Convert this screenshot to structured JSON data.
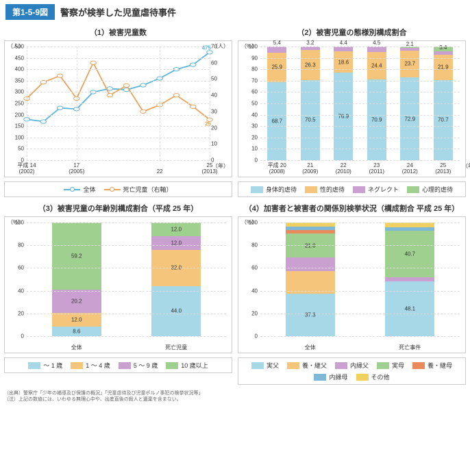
{
  "header": {
    "badge": "第1-5-9図",
    "title": "警察が検挙した児童虐待事件"
  },
  "colors": {
    "line_total": "#5bb5d9",
    "line_death": "#e8a35a",
    "physical": "#a6d8e8",
    "sexual": "#f4c57a",
    "neglect": "#c9a0d0",
    "psych": "#a0d090",
    "age0_1": "#a6d8e8",
    "age1_4": "#f4c57a",
    "age5_9": "#c9a0d0",
    "age10p": "#a0d090",
    "father": "#a6d8e8",
    "stepfather": "#f4c57a",
    "cohabfather": "#c9a0d0",
    "mother": "#a0d090",
    "stepmother": "#e88a5a",
    "cohabmother": "#7db8d8",
    "other": "#f0d060",
    "grid": "#dddddd"
  },
  "chart1": {
    "title": "（1）被害児童数",
    "unit_left": "（人）",
    "unit_right": "（人）",
    "unit_x": "（年）",
    "ymax_l": 500,
    "ystep_l": 50,
    "ymax_r": 70,
    "ystep_r": 10,
    "years": [
      "平成 14\n(2002)",
      "",
      "",
      "17\n(2005)",
      "",
      "",
      "",
      "",
      "22\n",
      "",
      "",
      "25\n(2013)"
    ],
    "total": [
      180,
      170,
      230,
      225,
      300,
      315,
      310,
      330,
      360,
      400,
      420,
      475
    ],
    "death": [
      38,
      48,
      52,
      38,
      60,
      40,
      46,
      30,
      34,
      40,
      33,
      25
    ],
    "labels": {
      "total_last": "475",
      "death_last": "25"
    },
    "legend": [
      "全体",
      "死亡児童（右軸）"
    ]
  },
  "chart2": {
    "title": "（2）被害児童の態様別構成割合",
    "unit_left": "（%）",
    "unit_x": "（年）",
    "ymax": 100,
    "ystep": 10,
    "years": [
      "平成 20\n(2008)",
      "21\n(2009)",
      "22\n(2010)",
      "23\n(2011)",
      "24\n(2012)",
      "25\n(2013)"
    ],
    "series": [
      {
        "phys": 68.7,
        "sex": 25.9,
        "neg": 5.4,
        "psy": 0
      },
      {
        "phys": 70.5,
        "sex": 26.3,
        "neg": 3.2,
        "psy": 0
      },
      {
        "phys": 76.9,
        "sex": 18.6,
        "neg": 4.4,
        "psy": 0
      },
      {
        "phys": 70.9,
        "sex": 24.4,
        "neg": 4.5,
        "psy": 0.2
      },
      {
        "phys": 72.9,
        "sex": 23.7,
        "neg": 2.1,
        "psy": 1.3
      },
      {
        "phys": 70.7,
        "sex": 21.9,
        "neg": 3.4,
        "psy": 4.0
      }
    ],
    "legend": [
      "身体的虐待",
      "性的虐待",
      "ネグレクト",
      "心理的虐待"
    ]
  },
  "chart3": {
    "title": "（3）被害児童の年齢別構成割合（平成 25 年）",
    "unit_left": "（%）",
    "ymax": 100,
    "ystep": 20,
    "cats": [
      "全体",
      "死亡児童"
    ],
    "series": [
      {
        "a0": 8.6,
        "a1": 12.0,
        "a5": 20.2,
        "a10": 59.2
      },
      {
        "a0": 44.0,
        "a1": 32.0,
        "a5": 12.0,
        "a10": 12.0
      }
    ],
    "legend": [
      "〜 1 歳",
      "1 〜 4 歳",
      "5 〜 9 歳",
      "10 歳以上"
    ]
  },
  "chart4": {
    "title": "（4）加害者と被害者の関係別検挙状況（構成割合 平成 25 年）",
    "unit_left": "（%）",
    "ymax": 100,
    "ystep": 20,
    "cats": [
      "全体",
      "死亡事件"
    ],
    "series": [
      {
        "father": 37.3,
        "stepf": 20.0,
        "cohabf": 12.0,
        "mother": 21.0,
        "stepm": 3.0,
        "cohabm": 3.0,
        "other": 3.7
      },
      {
        "father": 48.1,
        "stepf": 0,
        "cohabf": 4.0,
        "mother": 40.7,
        "stepm": 0,
        "cohabm": 3.0,
        "other": 4.2
      }
    ],
    "legend": [
      "実父",
      "養・継父",
      "内縁父",
      "実母",
      "養・継母",
      "内縁母",
      "その他"
    ]
  },
  "footer": {
    "l1": "（出典）警察庁「少年の補導及び保護の概況」「児童虐待及び児童ポルノ事犯の検挙状況等」",
    "l2": "（注）上記の数値には、いわゆる無理心中や、出産直後の殺人と遺棄を含まない。"
  }
}
